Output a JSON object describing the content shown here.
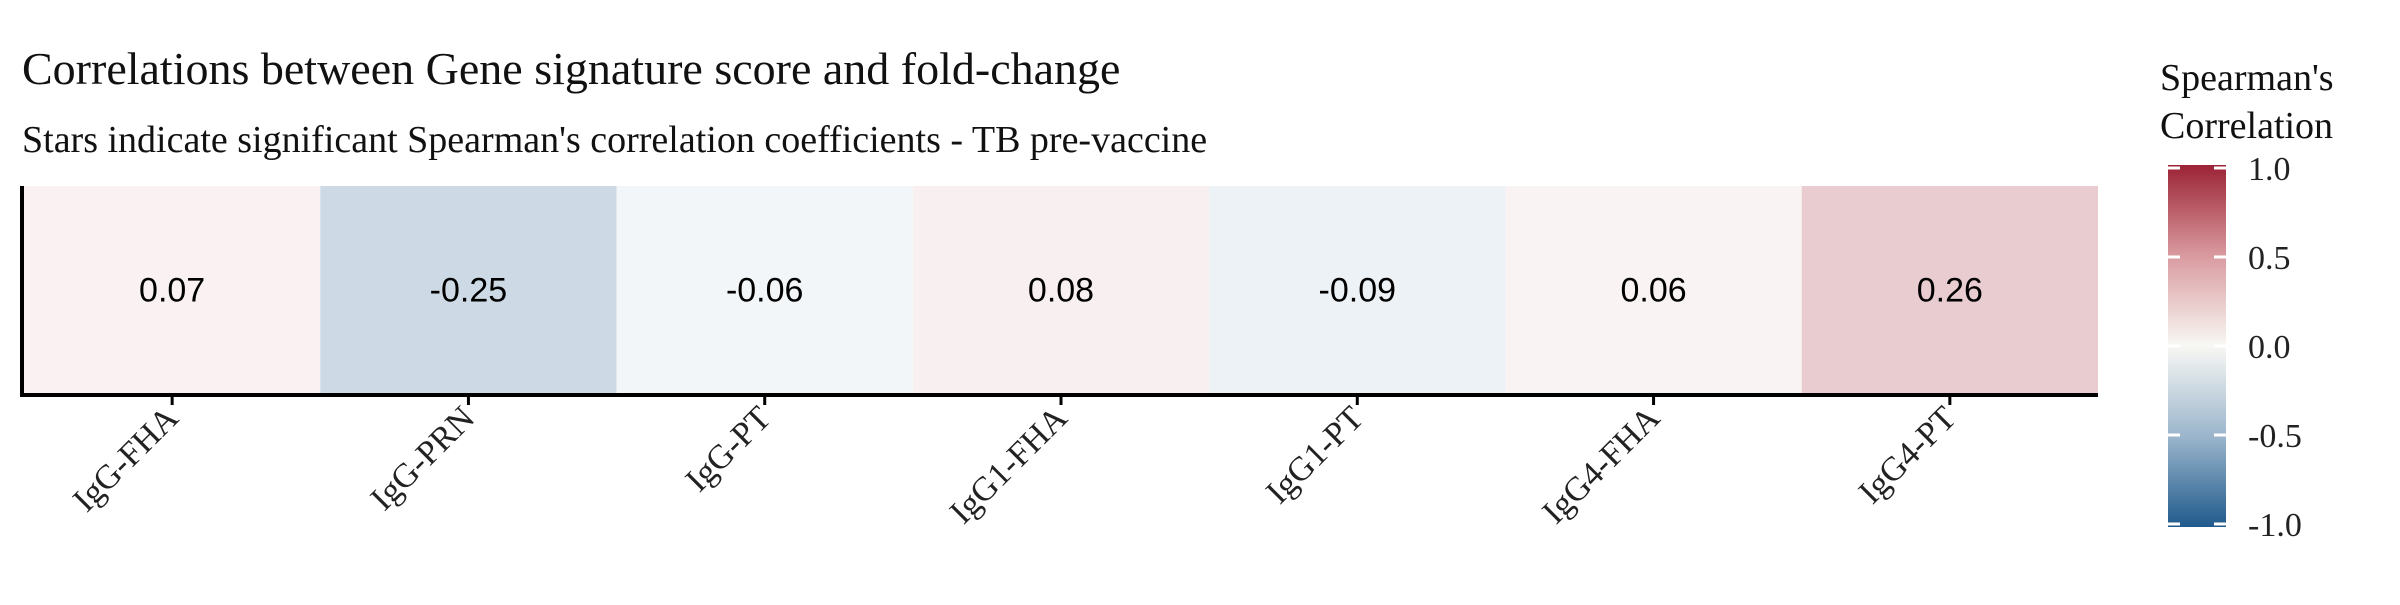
{
  "chart_data": {
    "type": "heatmap",
    "title": "Correlations between Gene signature score and fold-change",
    "subtitle": "Stars indicate significant Spearman's correlation coefficients - TB pre-vaccine",
    "xlabel": "",
    "ylabel": "",
    "categories": [
      "IgG-FHA",
      "IgG-PRN",
      "IgG-PT",
      "IgG1-FHA",
      "IgG1-PT",
      "IgG4-FHA",
      "IgG4-PT"
    ],
    "values": [
      0.07,
      -0.25,
      -0.06,
      0.08,
      -0.09,
      0.06,
      0.26
    ],
    "value_labels": [
      "0.07",
      "-0.25",
      "-0.06",
      "0.08",
      "-0.09",
      "0.06",
      "0.26"
    ],
    "colorbar": {
      "title_line1": "Spearman's",
      "title_line2": "Correlation",
      "range": [
        -1.0,
        1.0
      ],
      "tick_values": [
        1.0,
        0.5,
        0.0,
        -0.5,
        -1.0
      ],
      "tick_labels": [
        "1.0",
        "0.5",
        "0.0",
        "-0.5",
        "-1.0"
      ],
      "colors": {
        "low": "#1f5a8c",
        "mid": "#ffffff",
        "high": "#9b2335"
      }
    },
    "grid": false,
    "legend_position": "right"
  }
}
